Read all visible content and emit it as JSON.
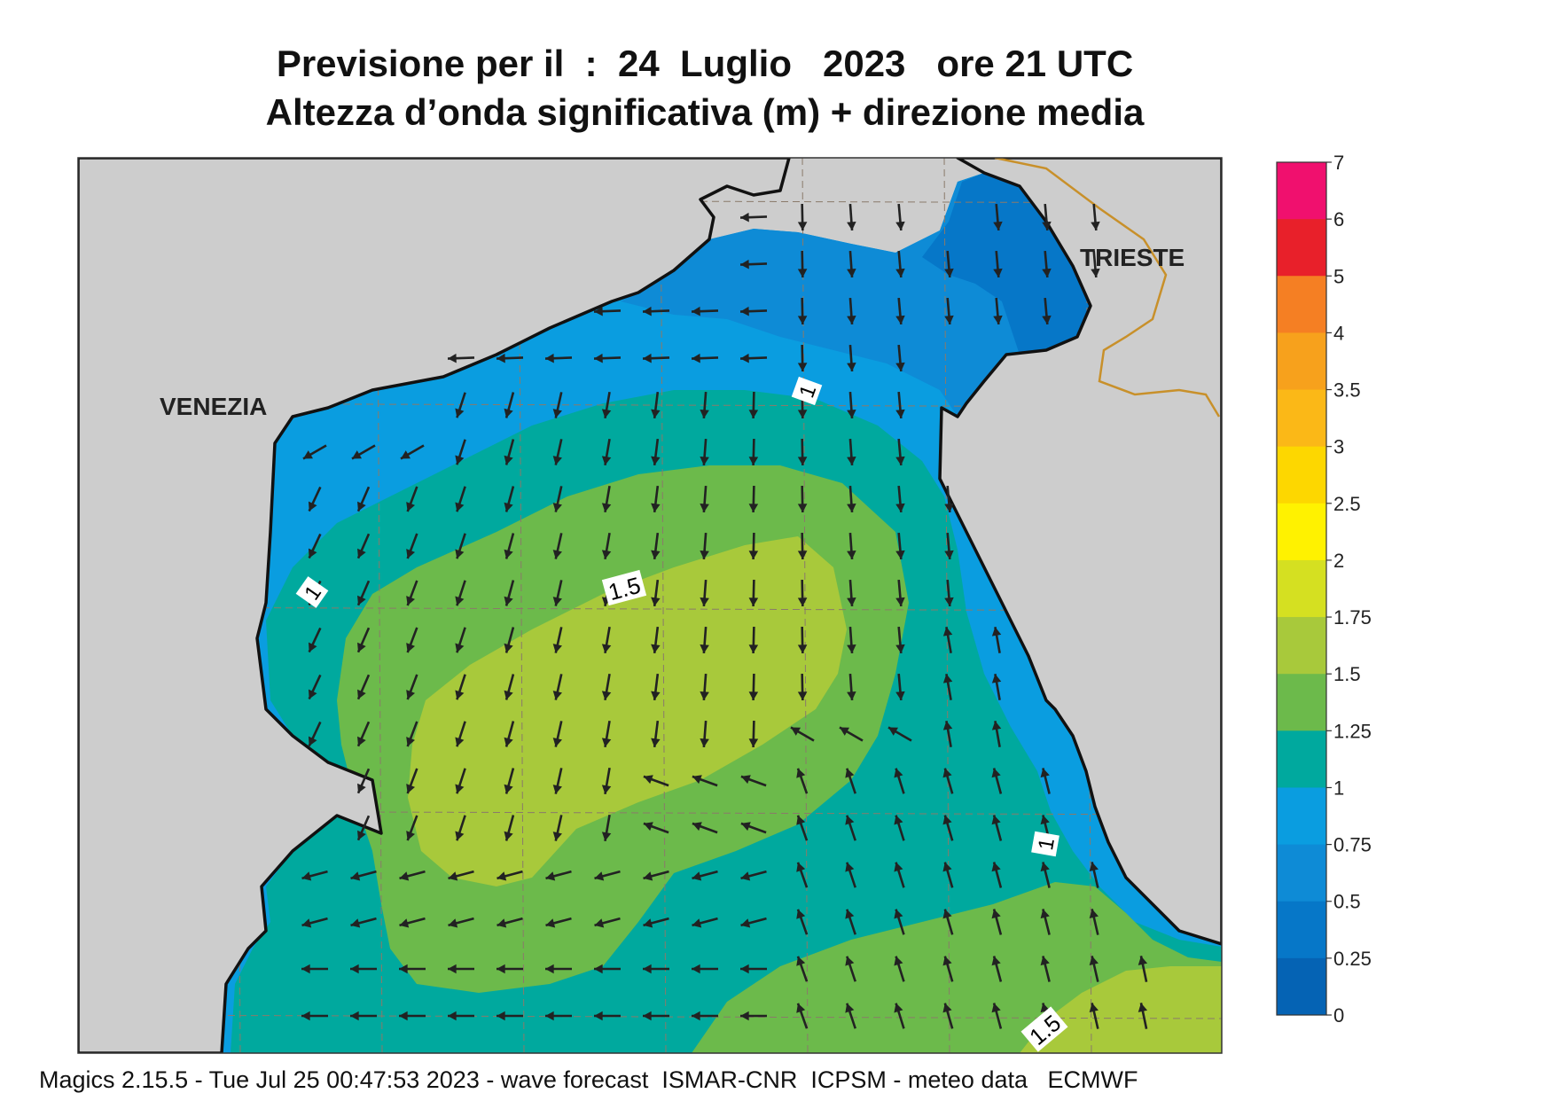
{
  "title": {
    "line1": "Previsione per il  :  24  Luglio   2023   ore 21 UTC",
    "line2": "Altezza d’onda significativa (m) + direzione media"
  },
  "cities": [
    {
      "name": "VENEZIA"
    },
    {
      "name": "TRIESTE"
    }
  ],
  "contour_labels": [
    "1",
    "1",
    "1.5",
    "1",
    "1.5"
  ],
  "legend": {
    "levels": [
      "7",
      "6",
      "5",
      "4",
      "3.5",
      "3",
      "2.5",
      "2",
      "1.75",
      "1.5",
      "1.25",
      "1",
      "0.75",
      "0.5",
      "0.25",
      "0"
    ],
    "colors": [
      "#f0106e",
      "#e8202a",
      "#f57f23",
      "#f7a11c",
      "#fbb817",
      "#fdd700",
      "#fff200",
      "#d5e021",
      "#a8c93b",
      "#6cba4b",
      "#00a99e",
      "#0a9de0",
      "#0e8bd6",
      "#0677c8",
      "#0563b4"
    ]
  },
  "colors": {
    "land": "#cdcdcd",
    "coast": "#111111",
    "border": "#c8902a",
    "grid": "#8a7a6a",
    "arrow": "#222222"
  },
  "footer": "Magics 2.15.5 - Tue Jul 25 00:47:53 2023 - wave forecast  ISMAR-CNR  ICPSM - meteo data   ECMWF"
}
